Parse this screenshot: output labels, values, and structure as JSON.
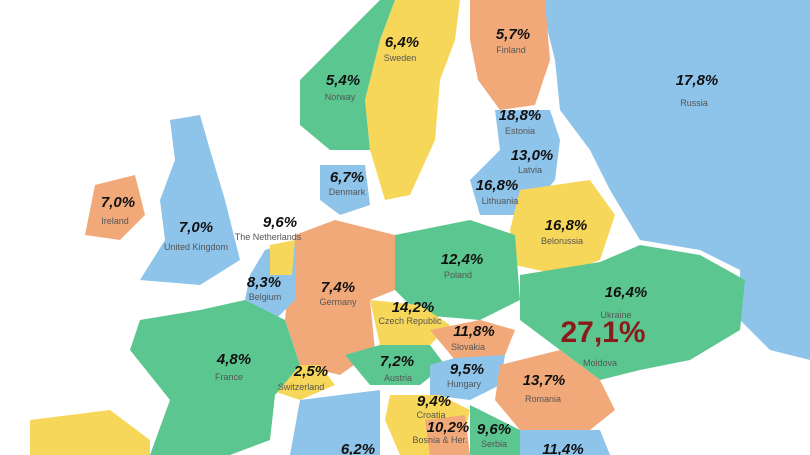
{
  "regions": [
    {
      "name": "Sweden",
      "value": "6,4%"
    },
    {
      "name": "Finland",
      "value": "5,7%"
    },
    {
      "name": "Russia",
      "value": "17,8%"
    },
    {
      "name": "Norway",
      "value": "5,4%"
    },
    {
      "name": "Estonia",
      "value": "18,8%"
    },
    {
      "name": "Latvia",
      "value": "13,0%"
    },
    {
      "name": "Denmark",
      "value": "6,7%"
    },
    {
      "name": "Lithuania",
      "value": "16,8%"
    },
    {
      "name": "Ireland",
      "value": "7,0%"
    },
    {
      "name": "United Kingdom",
      "value": "7,0%"
    },
    {
      "name": "The Netherlands",
      "value": "9,6%"
    },
    {
      "name": "Belorussia",
      "value": "16,8%"
    },
    {
      "name": "Poland",
      "value": "12,4%"
    },
    {
      "name": "Belgium",
      "value": "8,3%"
    },
    {
      "name": "Germany",
      "value": "7,4%"
    },
    {
      "name": "Ukraine",
      "value": "16,4%"
    },
    {
      "name": "Czech Republic",
      "value": "14,2%"
    },
    {
      "name": "Slovakia",
      "value": "11,8%"
    },
    {
      "name": "Moldova",
      "value": "27,1%"
    },
    {
      "name": "France",
      "value": "4,8%"
    },
    {
      "name": "Austria",
      "value": "7,2%"
    },
    {
      "name": "Hungary",
      "value": "9,5%"
    },
    {
      "name": "Switzerland",
      "value": "2,5%"
    },
    {
      "name": "Romania",
      "value": "13,7%"
    },
    {
      "name": "Croatia",
      "value": "9,4%"
    },
    {
      "name": "Bosnia & Her.",
      "value": "10,2%"
    },
    {
      "name": "Serbia",
      "value": "9,6%"
    },
    {
      "value": "6,2%"
    },
    {
      "value": "11,4%"
    }
  ]
}
